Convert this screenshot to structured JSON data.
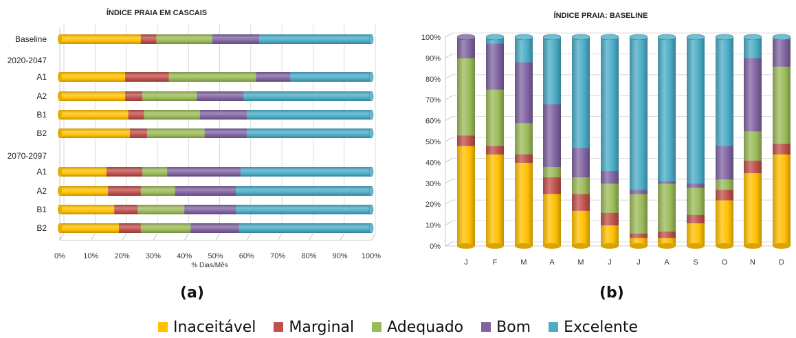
{
  "colors": {
    "Inaceitável": "#ffc000",
    "Marginal": "#c0504d",
    "Adequado": "#9bbb59",
    "Bom": "#8064a2",
    "Excelente": "#4bacc6"
  },
  "legend": [
    "Inaceitável",
    "Marginal",
    "Adequado",
    "Bom",
    "Excelente"
  ],
  "captions": {
    "a": "(a)",
    "b": "(b)"
  },
  "chart_data": [
    {
      "type": "bar",
      "orientation": "horizontal",
      "stacked": true,
      "title": "ÍNDICE PRAIA EM CASCAIS",
      "xlabel": "% Dias/Mês",
      "xlim": [
        0,
        100
      ],
      "xticks": [
        "0%",
        "10%",
        "20%",
        "30%",
        "40%",
        "50%",
        "60%",
        "70%",
        "80%",
        "90%",
        "100%"
      ],
      "group_labels": [
        "2020-2047",
        "2070-2097"
      ],
      "categories": [
        "Baseline",
        "A1",
        "A2",
        "B1",
        "B2",
        "A1",
        "A2",
        "B1",
        "B2"
      ],
      "series": [
        {
          "name": "Inaceitável",
          "values": [
            26,
            21,
            21,
            22,
            22.5,
            15,
            15.5,
            17.5,
            19
          ]
        },
        {
          "name": "Marginal",
          "values": [
            5,
            14,
            5.5,
            5,
            5.5,
            11.5,
            10.5,
            7.5,
            7
          ]
        },
        {
          "name": "Adequado",
          "values": [
            18,
            28,
            17.5,
            18,
            18.5,
            8,
            11,
            15,
            16
          ]
        },
        {
          "name": "Bom",
          "values": [
            15,
            11,
            15,
            15,
            13.5,
            23.5,
            19.5,
            16.5,
            15.5
          ]
        },
        {
          "name": "Excelente",
          "values": [
            36,
            26,
            41,
            40,
            40,
            42,
            43.5,
            43.5,
            42.5
          ]
        }
      ]
    },
    {
      "type": "bar",
      "orientation": "vertical",
      "stacked": true,
      "title": "ÍNDICE PRAIA: BASELINE",
      "ylim": [
        0,
        100
      ],
      "yticks": [
        "0%",
        "10%",
        "20%",
        "30%",
        "40%",
        "50%",
        "60%",
        "70%",
        "80%",
        "90%",
        "100%"
      ],
      "categories": [
        "J",
        "F",
        "M",
        "A",
        "M",
        "J",
        "J",
        "A",
        "S",
        "O",
        "N",
        "D"
      ],
      "series": [
        {
          "name": "Inaceitável",
          "values": [
            48,
            44,
            40,
            25,
            17,
            10,
            4,
            4,
            11,
            22,
            35,
            44
          ]
        },
        {
          "name": "Marginal",
          "values": [
            5,
            4,
            4,
            8,
            8,
            6,
            2,
            3,
            4,
            5,
            6,
            5
          ]
        },
        {
          "name": "Adequado",
          "values": [
            37,
            27,
            15,
            5,
            8,
            14,
            19,
            23,
            13,
            5,
            14,
            37
          ]
        },
        {
          "name": "Bom",
          "values": [
            10,
            22,
            29,
            30,
            14,
            6,
            2,
            1,
            2,
            16,
            35,
            13
          ]
        },
        {
          "name": "Excelente",
          "values": [
            0,
            3,
            12,
            32,
            53,
            64,
            73,
            69,
            70,
            52,
            10,
            1
          ]
        }
      ]
    }
  ]
}
